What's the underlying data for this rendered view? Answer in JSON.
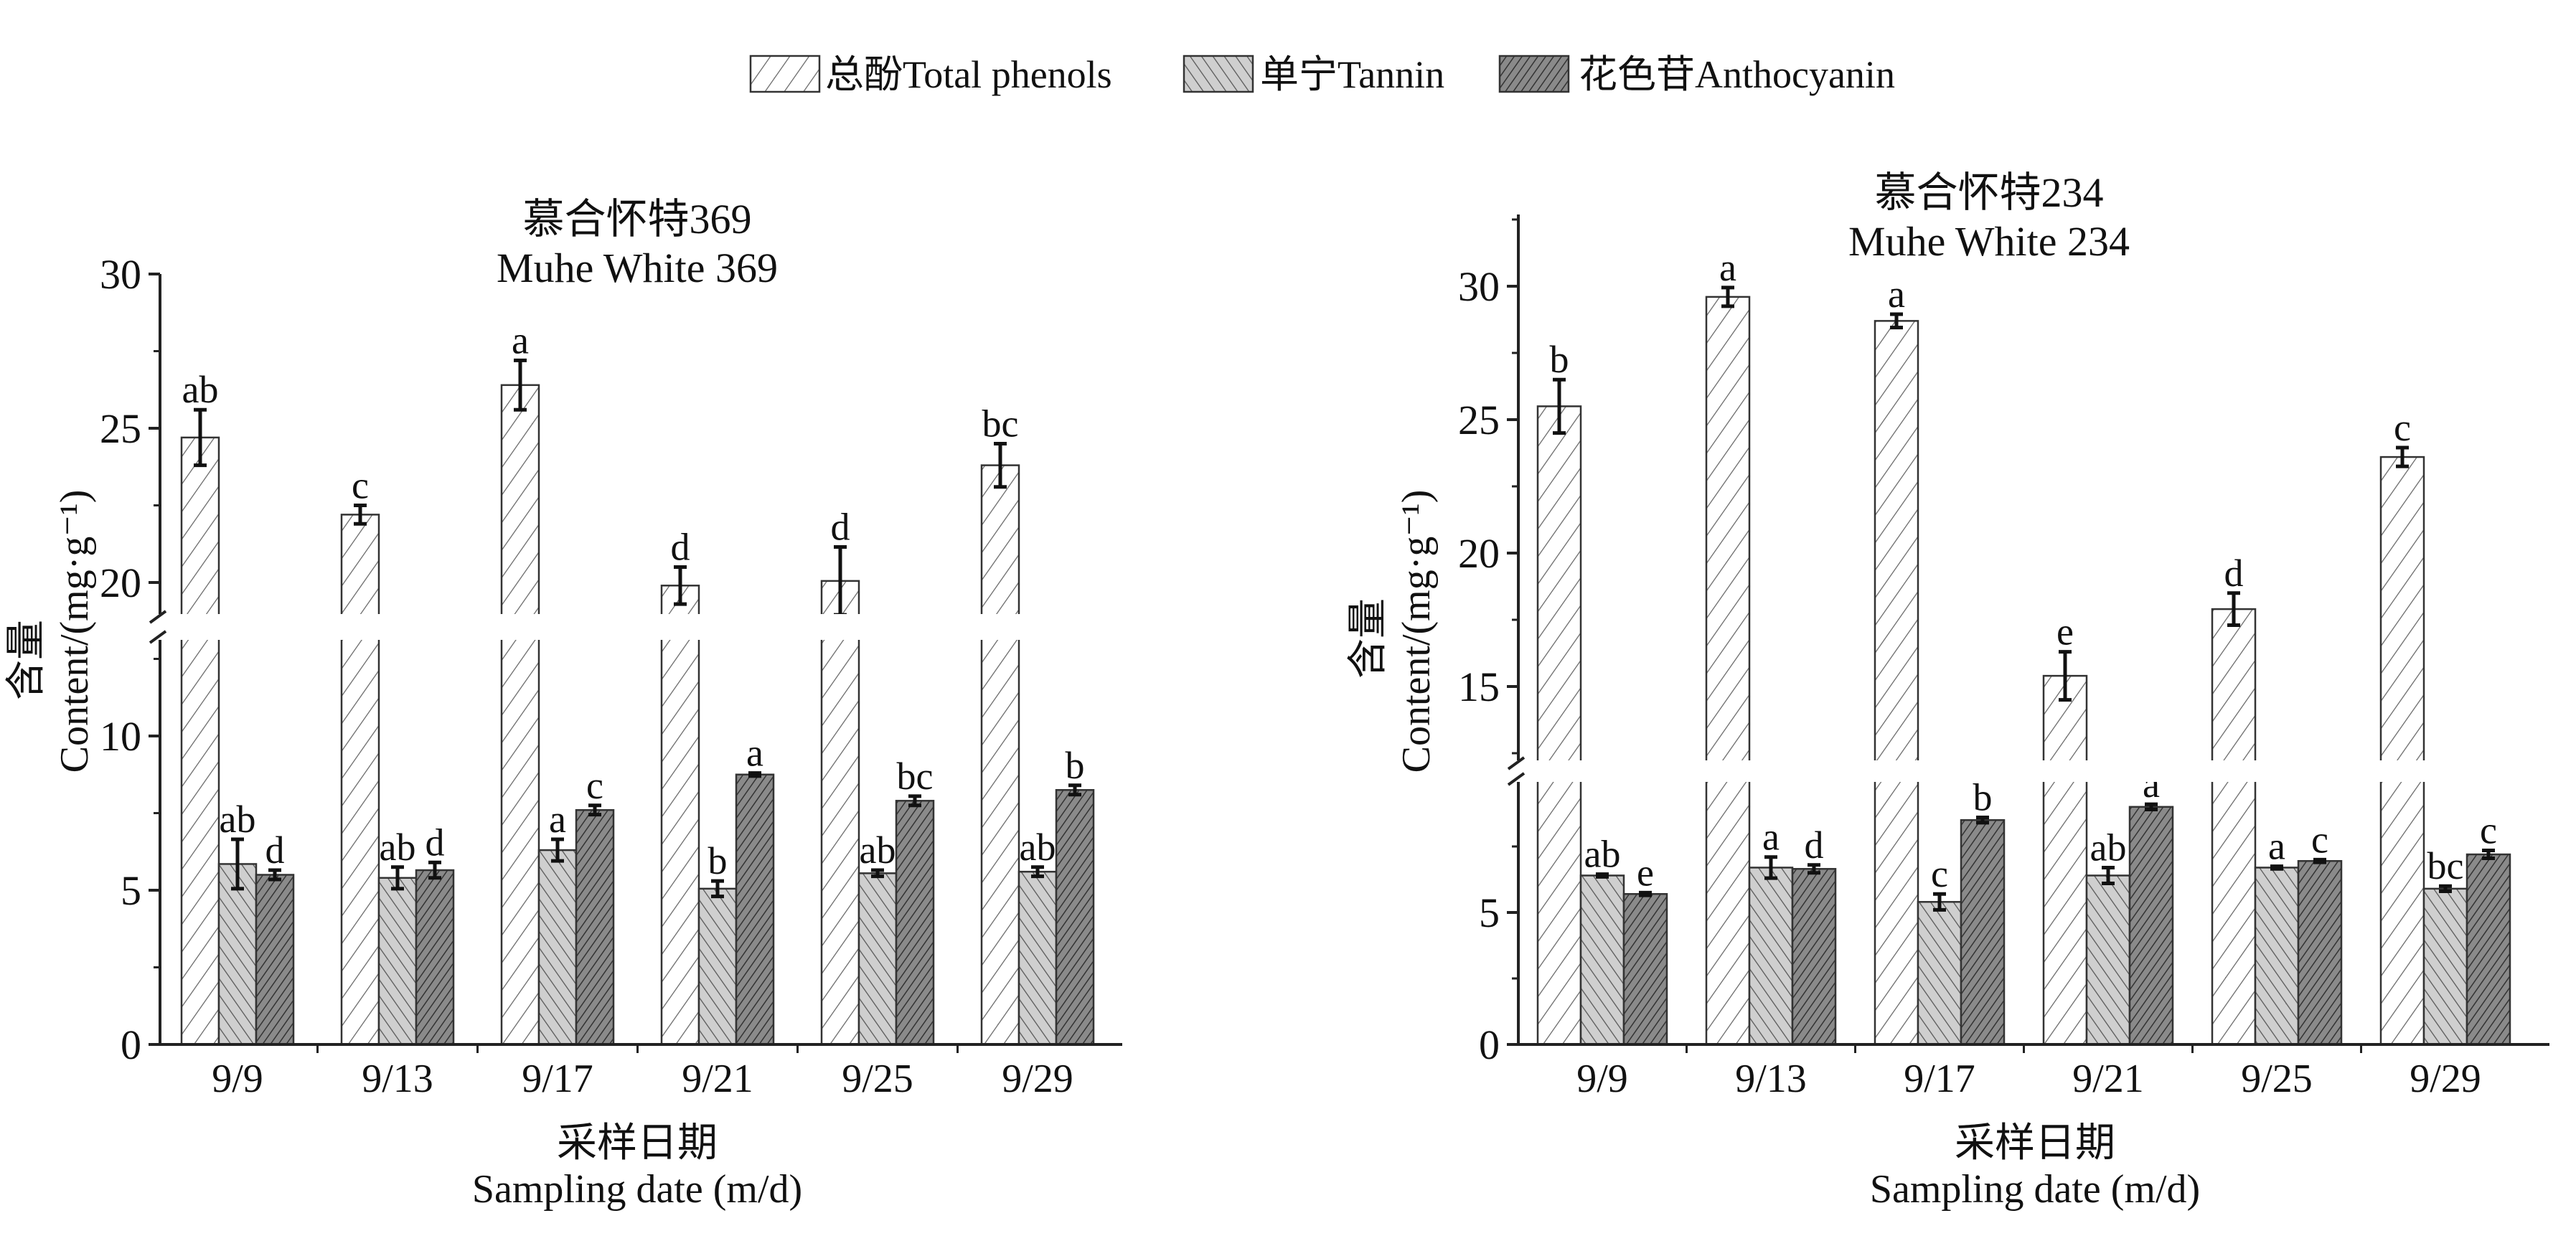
{
  "legend": {
    "placement": "top-center",
    "items": [
      {
        "label": "总酚Total phenols",
        "pattern": "sparse-forward-hatch",
        "fill": "#ffffff"
      },
      {
        "label": "单宁Tannin",
        "pattern": "back-hatch",
        "fill": "#c8c8c8"
      },
      {
        "label": "花色苷Anthocyanin",
        "pattern": "dense-forward-hatch",
        "fill": "#6e6e6e"
      }
    ]
  },
  "chart_data": [
    {
      "type": "bar",
      "title": "慕合怀特369",
      "subtitle": "Muhe White 369",
      "xlabel_cn": "采样日期",
      "xlabel": "Sampling date (m/d)",
      "ylabel_cn": "含量",
      "ylabel": "Content/(mg·g⁻¹)",
      "categories": [
        "9/9",
        "9/13",
        "9/17",
        "9/21",
        "9/25",
        "9/29"
      ],
      "ylim": [
        0,
        30
      ],
      "axis_break": [
        13.1,
        19.0
      ],
      "yticks": [
        0,
        5,
        10,
        20,
        25,
        30
      ],
      "grid": false,
      "series": [
        {
          "name": "总酚Total phenols",
          "values": [
            24.7,
            22.2,
            26.4,
            19.9,
            20.05,
            23.8
          ],
          "errors": [
            0.9,
            0.3,
            0.8,
            0.6,
            1.1,
            0.7
          ],
          "letters": [
            "ab",
            "c",
            "a",
            "d",
            "d",
            "bc"
          ]
        },
        {
          "name": "单宁Tannin",
          "values": [
            5.85,
            5.4,
            6.3,
            5.05,
            5.55,
            5.6
          ],
          "errors": [
            0.8,
            0.35,
            0.35,
            0.25,
            0.1,
            0.15
          ],
          "letters": [
            "ab",
            "ab",
            "a",
            "b",
            "ab",
            "ab"
          ]
        },
        {
          "name": "花色苷Anthocyanin",
          "values": [
            5.5,
            5.65,
            7.6,
            8.75,
            7.9,
            8.25
          ],
          "errors": [
            0.15,
            0.25,
            0.15,
            0.05,
            0.15,
            0.15
          ],
          "letters": [
            "d",
            "d",
            "c",
            "a",
            "bc",
            "b"
          ]
        }
      ]
    },
    {
      "type": "bar",
      "title": "慕合怀特234",
      "subtitle": "Muhe White 234",
      "xlabel_cn": "采样日期",
      "xlabel": "Sampling date (m/d)",
      "ylabel_cn": "含量",
      "ylabel": "Content/(mg·g⁻¹)",
      "categories": [
        "9/9",
        "9/13",
        "9/17",
        "9/21",
        "9/25",
        "9/29"
      ],
      "ylim": [
        0,
        32.5
      ],
      "axis_break": [
        10.4,
        11.9
      ],
      "yticks": [
        0,
        5,
        15,
        20,
        25,
        30
      ],
      "grid": false,
      "series": [
        {
          "name": "总酚Total phenols",
          "values": [
            25.5,
            29.6,
            28.7,
            15.4,
            17.9,
            23.6
          ],
          "errors": [
            1.0,
            0.35,
            0.25,
            0.9,
            0.6,
            0.35
          ],
          "letters": [
            "b",
            "a",
            "a",
            "e",
            "d",
            "c"
          ]
        },
        {
          "name": "单宁Tannin",
          "values": [
            6.4,
            6.7,
            5.4,
            6.4,
            6.7,
            5.9
          ],
          "errors": [
            0.05,
            0.4,
            0.3,
            0.3,
            0.05,
            0.1
          ],
          "letters": [
            "ab",
            "a",
            "c",
            "ab",
            "a",
            "bc"
          ]
        },
        {
          "name": "花色苷Anthocyanin",
          "values": [
            5.7,
            6.65,
            8.5,
            9.0,
            6.95,
            7.2
          ],
          "errors": [
            0.05,
            0.15,
            0.1,
            0.1,
            0.05,
            0.15
          ],
          "letters": [
            "e",
            "d",
            "b",
            "a",
            "c",
            "c"
          ]
        }
      ]
    }
  ]
}
